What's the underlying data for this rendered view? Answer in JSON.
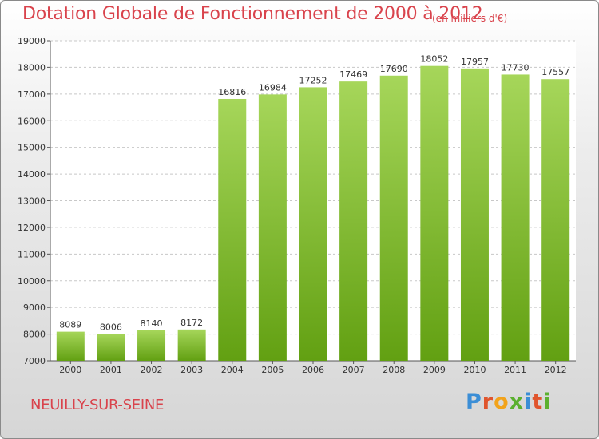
{
  "chart_data": {
    "type": "bar",
    "title": "Dotation Globale de Fonctionnement de 2000 à 2012",
    "subtitle": "(en milliers d'€)",
    "categories": [
      "2000",
      "2001",
      "2002",
      "2003",
      "2004",
      "2005",
      "2006",
      "2007",
      "2008",
      "2009",
      "2010",
      "2011",
      "2012"
    ],
    "values": [
      8089,
      8006,
      8140,
      8172,
      16816,
      16984,
      17252,
      17469,
      17690,
      18052,
      17957,
      17730,
      17557
    ],
    "ylim": [
      7000,
      19000
    ],
    "yticks": [
      7000,
      8000,
      9000,
      10000,
      11000,
      12000,
      13000,
      14000,
      15000,
      16000,
      17000,
      18000,
      19000
    ],
    "grid": true,
    "xlabel": "",
    "ylabel": "",
    "colors": {
      "bar_top": "#a6d65a",
      "bar_bottom": "#62a012",
      "title": "#d9434c",
      "grid": "#c8c8c8"
    }
  },
  "footer": {
    "city": "NEUILLY-SUR-SEINE",
    "logo": {
      "text": "Proxiti",
      "letters": [
        {
          "char": "P",
          "color": "#3b8ed6"
        },
        {
          "char": "r",
          "color": "#e0552d"
        },
        {
          "char": "o",
          "color": "#f2a31b"
        },
        {
          "char": "x",
          "color": "#5bb02f"
        },
        {
          "char": "i",
          "color": "#3b8ed6"
        },
        {
          "char": "t",
          "color": "#e0552d"
        },
        {
          "char": "i",
          "color": "#5bb02f"
        }
      ]
    }
  }
}
